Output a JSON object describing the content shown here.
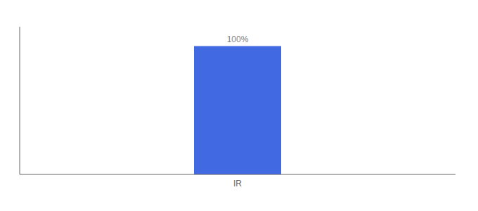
{
  "chart_data": {
    "type": "bar",
    "categories": [
      "IR"
    ],
    "values": [
      100
    ],
    "value_labels": [
      "100%"
    ],
    "data_labels": true,
    "color": "#4169e1",
    "ylim": [
      0,
      115
    ],
    "tick_labels": "x"
  }
}
